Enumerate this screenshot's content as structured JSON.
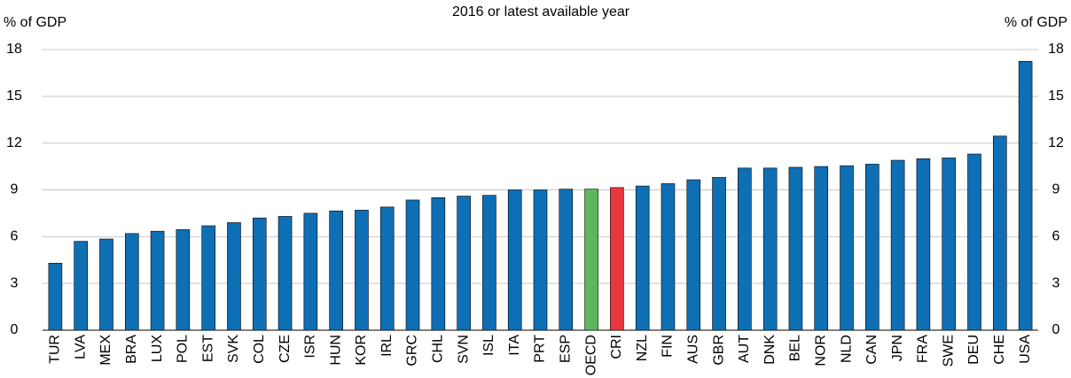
{
  "chart_data": {
    "type": "bar",
    "title": "2016 or latest available year",
    "ylabel": "% of GDP",
    "y2label": "% of GDP",
    "categories": [
      "TUR",
      "LVA",
      "MEX",
      "BRA",
      "LUX",
      "POL",
      "EST",
      "SVK",
      "COL",
      "CZE",
      "ISR",
      "HUN",
      "KOR",
      "IRL",
      "GRC",
      "CHL",
      "SVN",
      "ISL",
      "ITA",
      "PRT",
      "ESP",
      "OECD",
      "CRI",
      "NZL",
      "FIN",
      "AUS",
      "GBR",
      "AUT",
      "DNK",
      "BEL",
      "NOR",
      "NLD",
      "CAN",
      "JPN",
      "FRA",
      "SWE",
      "DEU",
      "CHE",
      "USA"
    ],
    "values": [
      4.3,
      5.7,
      5.85,
      6.2,
      6.35,
      6.45,
      6.7,
      6.9,
      7.2,
      7.3,
      7.5,
      7.65,
      7.7,
      7.9,
      8.35,
      8.5,
      8.6,
      8.65,
      9.0,
      9.0,
      9.05,
      9.05,
      9.15,
      9.25,
      9.4,
      9.65,
      9.8,
      10.4,
      10.4,
      10.45,
      10.5,
      10.55,
      10.65,
      10.9,
      11.0,
      11.05,
      11.3,
      12.45,
      17.25
    ],
    "colors": [
      "#0f6fb5",
      "#0f6fb5",
      "#0f6fb5",
      "#0f6fb5",
      "#0f6fb5",
      "#0f6fb5",
      "#0f6fb5",
      "#0f6fb5",
      "#0f6fb5",
      "#0f6fb5",
      "#0f6fb5",
      "#0f6fb5",
      "#0f6fb5",
      "#0f6fb5",
      "#0f6fb5",
      "#0f6fb5",
      "#0f6fb5",
      "#0f6fb5",
      "#0f6fb5",
      "#0f6fb5",
      "#0f6fb5",
      "#5cb85c",
      "#e8383d",
      "#0f6fb5",
      "#0f6fb5",
      "#0f6fb5",
      "#0f6fb5",
      "#0f6fb5",
      "#0f6fb5",
      "#0f6fb5",
      "#0f6fb5",
      "#0f6fb5",
      "#0f6fb5",
      "#0f6fb5",
      "#0f6fb5",
      "#0f6fb5",
      "#0f6fb5",
      "#0f6fb5",
      "#0f6fb5"
    ],
    "ylim": [
      0,
      18
    ],
    "yticks": [
      0,
      3,
      6,
      9,
      12,
      15,
      18
    ],
    "y2lim": [
      0,
      18
    ],
    "y2ticks": [
      0,
      3,
      6,
      9,
      12,
      15,
      18
    ],
    "grid": true
  }
}
